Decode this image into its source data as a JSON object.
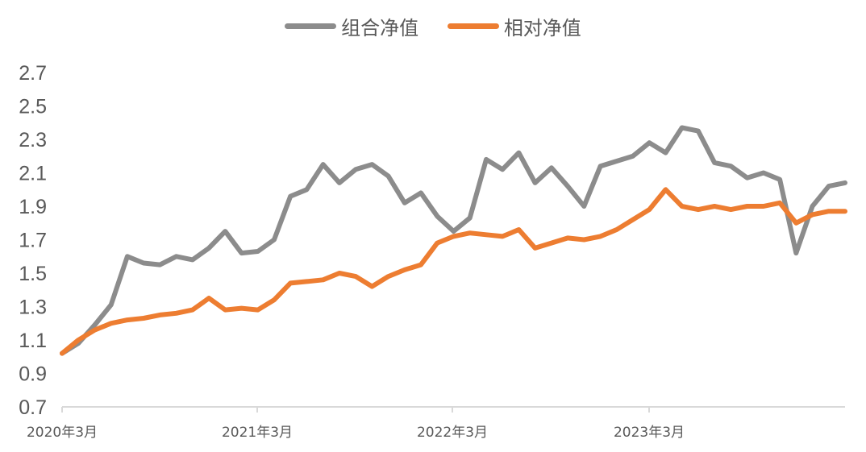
{
  "legend": {
    "series1_label": "组合净值",
    "series2_label": "相对净值"
  },
  "colors": {
    "series1": "#8c8c8c",
    "series2": "#ed7d31",
    "axis": "#d9d9d9",
    "text": "#595959"
  },
  "chart_data": {
    "type": "line",
    "title": "",
    "xlabel": "",
    "ylabel": "",
    "ylim": [
      0.7,
      2.7
    ],
    "yticks": [
      "0.7",
      "0.9",
      "1.1",
      "1.3",
      "1.5",
      "1.7",
      "1.9",
      "2.1",
      "2.3",
      "2.5",
      "2.7"
    ],
    "xtick_labels": [
      "2020年3月",
      "2021年3月",
      "2022年3月",
      "2023年3月"
    ],
    "xlim": [
      "2020-03",
      "2024-03"
    ],
    "legend_position": "top-center",
    "grid": false,
    "series": [
      {
        "name": "组合净值",
        "x": [
          "2020-03",
          "2020-04",
          "2020-05",
          "2020-06",
          "2020-07",
          "2020-08",
          "2020-09",
          "2020-10",
          "2020-11",
          "2020-12",
          "2021-01",
          "2021-02",
          "2021-03",
          "2021-04",
          "2021-05",
          "2021-06",
          "2021-07",
          "2021-08",
          "2021-09",
          "2021-10",
          "2021-11",
          "2021-12",
          "2022-01",
          "2022-02",
          "2022-03",
          "2022-04",
          "2022-05",
          "2022-06",
          "2022-07",
          "2022-08",
          "2022-09",
          "2022-10",
          "2022-11",
          "2022-12",
          "2023-01",
          "2023-02",
          "2023-03",
          "2023-04",
          "2023-05",
          "2023-06",
          "2023-07",
          "2023-08",
          "2023-09",
          "2023-10",
          "2023-11",
          "2023-12",
          "2024-01",
          "2024-02",
          "2024-03"
        ],
        "values": [
          1.02,
          1.08,
          1.19,
          1.31,
          1.6,
          1.56,
          1.55,
          1.6,
          1.58,
          1.65,
          1.75,
          1.62,
          1.63,
          1.7,
          1.96,
          2.0,
          2.15,
          2.04,
          2.12,
          2.15,
          2.08,
          1.92,
          1.98,
          1.84,
          1.75,
          1.83,
          2.18,
          2.12,
          2.22,
          2.04,
          2.13,
          2.02,
          1.9,
          2.14,
          2.17,
          2.2,
          2.28,
          2.22,
          2.37,
          2.35,
          2.16,
          2.14,
          2.07,
          2.1,
          2.06,
          1.62,
          1.9,
          2.02,
          2.04
        ]
      },
      {
        "name": "相对净值",
        "x": [
          "2020-03",
          "2020-04",
          "2020-05",
          "2020-06",
          "2020-07",
          "2020-08",
          "2020-09",
          "2020-10",
          "2020-11",
          "2020-12",
          "2021-01",
          "2021-02",
          "2021-03",
          "2021-04",
          "2021-05",
          "2021-06",
          "2021-07",
          "2021-08",
          "2021-09",
          "2021-10",
          "2021-11",
          "2021-12",
          "2022-01",
          "2022-02",
          "2022-03",
          "2022-04",
          "2022-05",
          "2022-06",
          "2022-07",
          "2022-08",
          "2022-09",
          "2022-10",
          "2022-11",
          "2022-12",
          "2023-01",
          "2023-02",
          "2023-03",
          "2023-04",
          "2023-05",
          "2023-06",
          "2023-07",
          "2023-08",
          "2023-09",
          "2023-10",
          "2023-11",
          "2023-12",
          "2024-01",
          "2024-02",
          "2024-03"
        ],
        "values": [
          1.02,
          1.1,
          1.16,
          1.2,
          1.22,
          1.23,
          1.25,
          1.26,
          1.28,
          1.35,
          1.28,
          1.29,
          1.28,
          1.34,
          1.44,
          1.45,
          1.46,
          1.5,
          1.48,
          1.42,
          1.48,
          1.52,
          1.55,
          1.68,
          1.72,
          1.74,
          1.73,
          1.72,
          1.76,
          1.65,
          1.68,
          1.71,
          1.7,
          1.72,
          1.76,
          1.82,
          1.88,
          2.0,
          1.9,
          1.88,
          1.9,
          1.88,
          1.9,
          1.9,
          1.92,
          1.8,
          1.85,
          1.87,
          1.87
        ]
      }
    ]
  }
}
